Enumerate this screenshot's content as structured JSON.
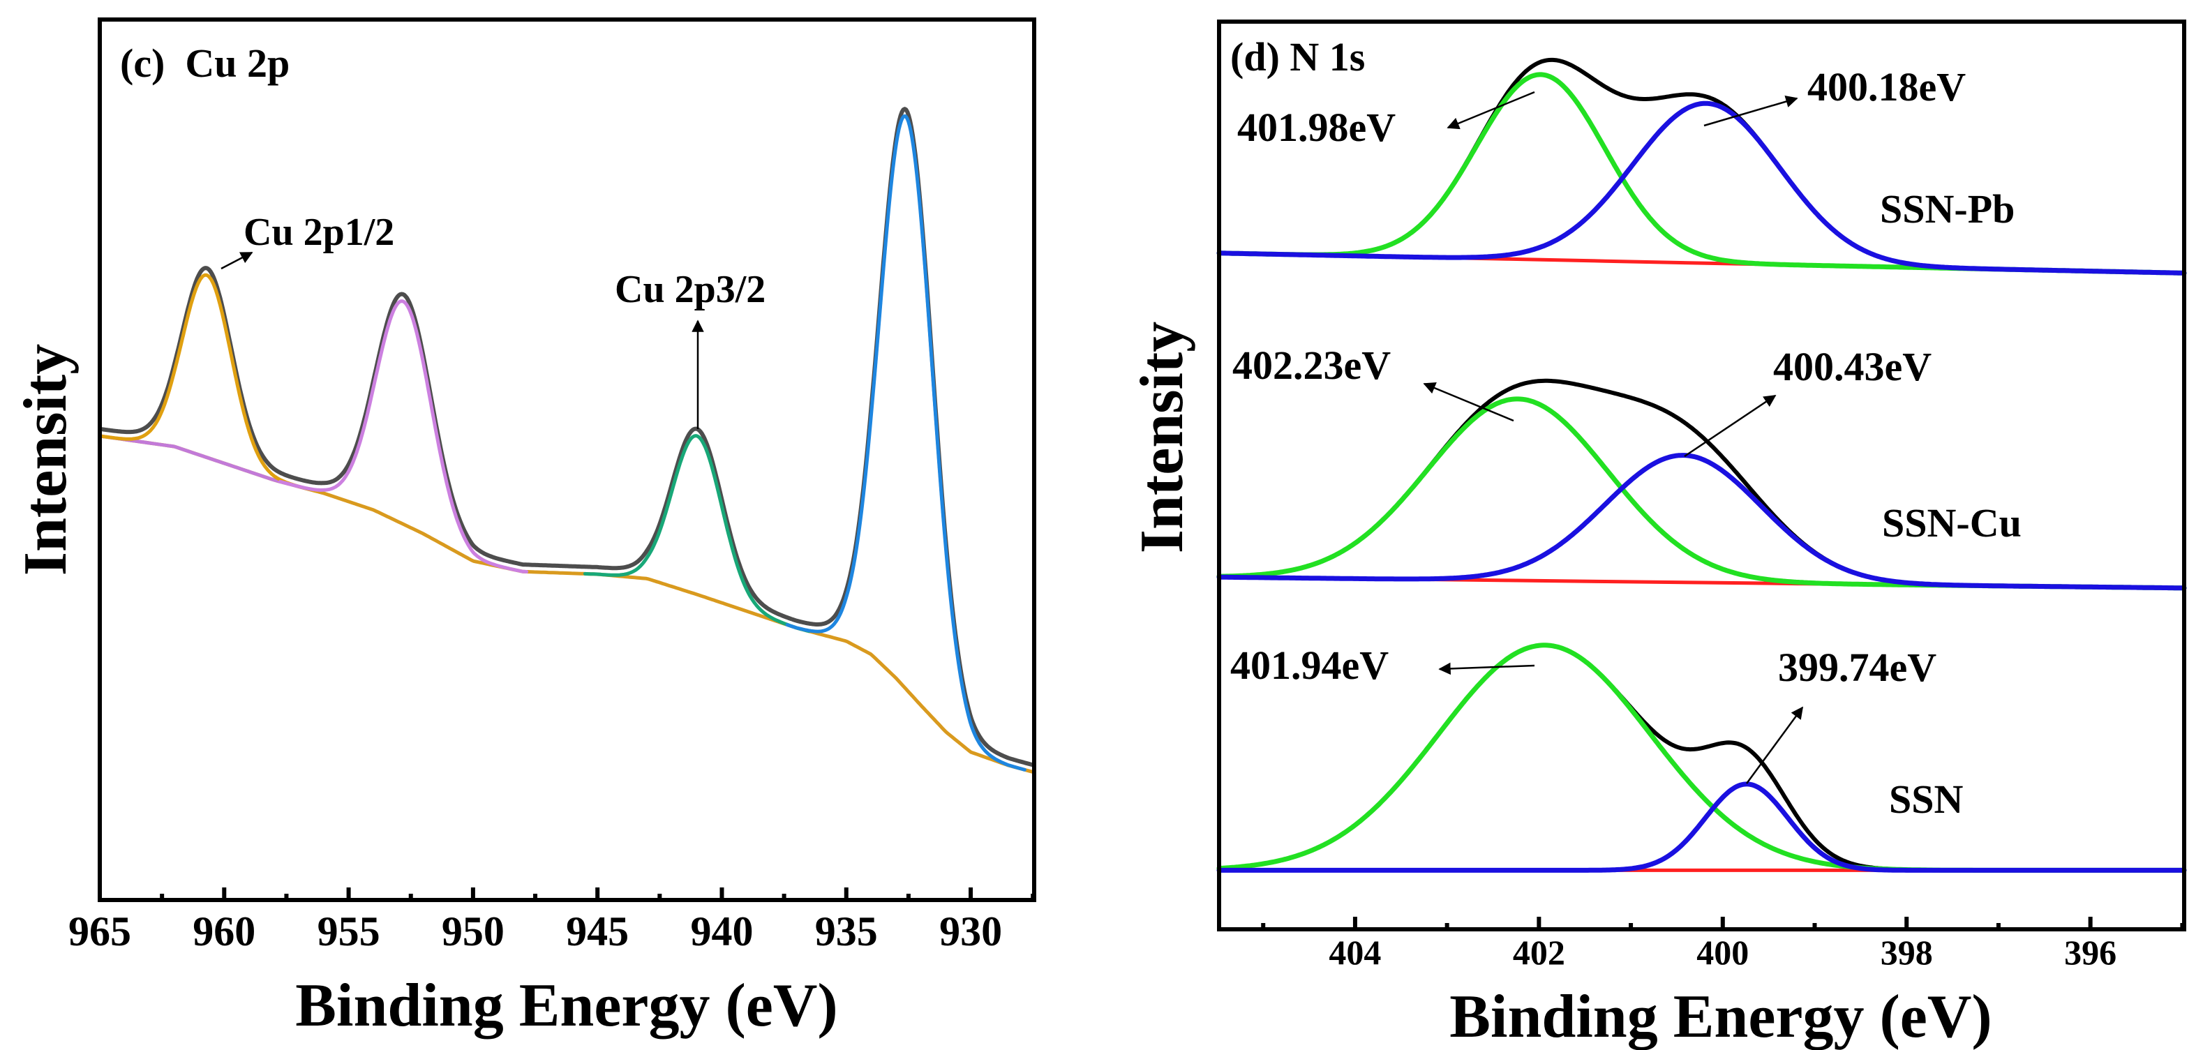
{
  "chart_data": [
    {
      "type": "line",
      "title": "(c)  Cu 2p",
      "xlabel": "Binding Energy (eV)",
      "ylabel": "Intensity",
      "xlim": [
        965,
        927.45
      ],
      "ylim": [
        0,
        100
      ],
      "xticks": [
        965,
        960,
        955,
        950,
        945,
        940,
        935,
        930
      ],
      "xtick_labels": [
        "965",
        "960",
        "955",
        "950",
        "945",
        "940",
        "935",
        "930"
      ],
      "minor_tick_step": 2.5,
      "grid": false,
      "colors": {
        "envelope": "#4d4d4d",
        "background": "#d99a1e",
        "background_left": "#c27ad8"
      },
      "background": {
        "x": [
          965,
          962,
          960,
          958,
          956,
          954,
          952,
          950,
          948,
          945,
          943,
          941,
          939,
          937,
          935,
          934,
          933,
          932,
          931,
          930,
          928.5,
          927.45
        ],
        "y": [
          52.7,
          51.5,
          49.6,
          47.7,
          46.2,
          44.3,
          41.6,
          38.5,
          37.3,
          37.0,
          36.5,
          34.7,
          32.8,
          30.9,
          29.4,
          27.9,
          25.2,
          22.1,
          19.1,
          16.8,
          15.3,
          14.5
        ]
      },
      "peaks": [
        {
          "name": "Cu 2p1/2",
          "center": 960.7,
          "height": 20.7,
          "sigma": 0.98,
          "color": "#e0a010"
        },
        {
          "name": "Cu 2p1/2 satellite",
          "center": 952.8,
          "height": 25.3,
          "sigma": 1.1,
          "color": "#cc80e0"
        },
        {
          "name": "Cu 2p3/2 satellite",
          "center": 941.0,
          "height": 18.0,
          "sigma": 1.0,
          "color": "#18a878"
        },
        {
          "name": "Cu 2p3/2",
          "center": 932.6,
          "height": 65.0,
          "sigma": 1.06,
          "color": "#1e86e0"
        }
      ],
      "annotations": [
        {
          "text": "Cu 2p1/2"
        },
        {
          "text": "Cu 2p3/2"
        }
      ]
    },
    {
      "type": "line",
      "title": "(d) N 1s",
      "xlabel": "Binding Energy (eV)",
      "ylabel": "Intensity",
      "xlim": [
        405.48,
        394.98
      ],
      "ylim": [
        0,
        100
      ],
      "xticks": [
        404,
        402,
        400,
        398,
        396
      ],
      "xtick_labels": [
        "404",
        "402",
        "400",
        "398",
        "396"
      ],
      "minor_tick_step": 1,
      "grid": false,
      "colors": {
        "envelope": "#000000",
        "baseline": "#ff2020",
        "peak_high": "#22e022",
        "peak_low": "#1a10e0"
      },
      "series": [
        {
          "name": "SSN-Pb",
          "baseline": [
            74.5,
            72.3
          ],
          "peaks": [
            {
              "center": 401.98,
              "height": 20.4,
              "sigma": 0.7
            },
            {
              "center": 400.18,
              "height": 17.6,
              "sigma": 0.8
            }
          ]
        },
        {
          "name": "SSN-Cu",
          "baseline": [
            38.8,
            37.6
          ],
          "peaks": [
            {
              "center": 402.23,
              "height": 20.0,
              "sigma": 0.98
            },
            {
              "center": 400.43,
              "height": 14.0,
              "sigma": 0.85
            }
          ]
        },
        {
          "name": "SSN",
          "baseline": [
            6.5,
            6.5
          ],
          "peaks": [
            {
              "center": 401.94,
              "height": 24.8,
              "sigma": 1.15
            },
            {
              "center": 399.74,
              "height": 9.5,
              "sigma": 0.45
            }
          ]
        }
      ],
      "annotations": [
        {
          "text": "401.98eV"
        },
        {
          "text": "400.18eV"
        },
        {
          "text": "402.23eV"
        },
        {
          "text": "400.43eV"
        },
        {
          "text": "401.94eV"
        },
        {
          "text": "399.74eV"
        }
      ]
    }
  ]
}
